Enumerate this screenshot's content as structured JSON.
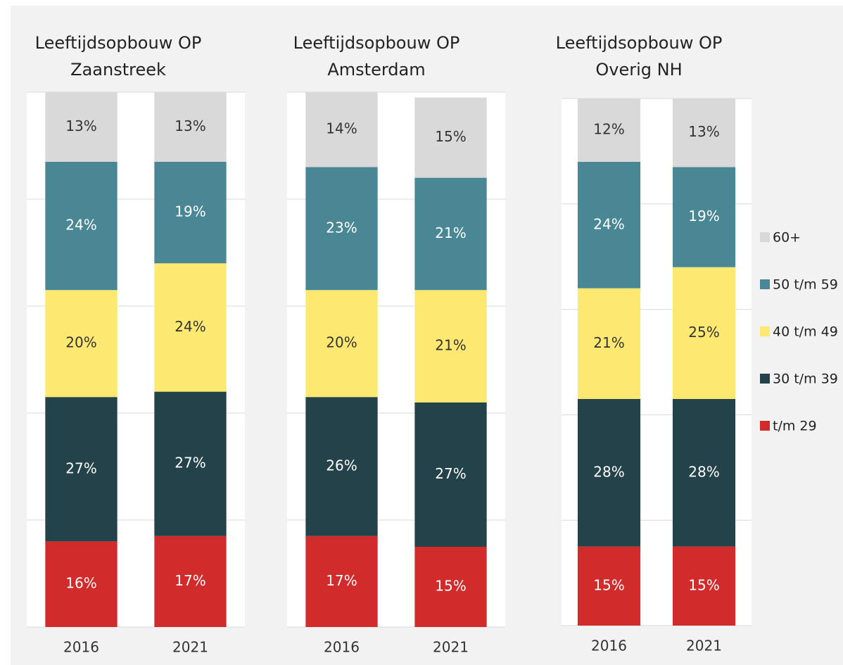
{
  "chart_data": [
    {
      "type": "bar",
      "stacked": true,
      "title": [
        "Leeftijdsopbouw OP",
        "Zaanstreek"
      ],
      "categories": [
        "2016",
        "2021"
      ],
      "series": [
        {
          "color": "#d22b2b",
          "values": [
            16,
            17
          ],
          "value_labels": [
            "16%",
            "17%"
          ]
        },
        {
          "color": "#244249",
          "values": [
            27,
            27
          ],
          "value_labels": [
            "27%",
            "27%"
          ]
        },
        {
          "color": "#fde971",
          "values": [
            20,
            24
          ],
          "value_labels": [
            "20%",
            "24%"
          ]
        },
        {
          "color": "#4a8795",
          "values": [
            24,
            19
          ],
          "value_labels": [
            "24%",
            "19%"
          ]
        },
        {
          "color": "#d9d9d9",
          "values": [
            13,
            13
          ],
          "value_labels": [
            "13%",
            "13%"
          ]
        }
      ],
      "ylim": [
        0,
        100
      ],
      "yticks": [
        0,
        20,
        40,
        60,
        80,
        100
      ],
      "grid": true
    },
    {
      "type": "bar",
      "stacked": true,
      "title": [
        "Leeftijdsopbouw OP",
        "Amsterdam"
      ],
      "categories": [
        "2016",
        "2021"
      ],
      "series": [
        {
          "color": "#d22b2b",
          "values": [
            17,
            15
          ],
          "value_labels": [
            "17%",
            "15%"
          ]
        },
        {
          "color": "#244249",
          "values": [
            26,
            27
          ],
          "value_labels": [
            "26%",
            "27%"
          ]
        },
        {
          "color": "#fde971",
          "values": [
            20,
            21
          ],
          "value_labels": [
            "20%",
            "21%"
          ]
        },
        {
          "color": "#4a8795",
          "values": [
            23,
            21
          ],
          "value_labels": [
            "23%",
            "21%"
          ]
        },
        {
          "color": "#d9d9d9",
          "values": [
            14,
            15
          ],
          "value_labels": [
            "14%",
            "15%"
          ]
        }
      ],
      "ylim": [
        0,
        100
      ],
      "yticks": [
        0,
        20,
        40,
        60,
        80,
        100
      ],
      "grid": true
    },
    {
      "type": "bar",
      "stacked": true,
      "title": [
        "Leeftijdsopbouw OP",
        "Overig NH"
      ],
      "categories": [
        "2016",
        "2021"
      ],
      "series": [
        {
          "name": "t/m 29",
          "color": "#d22b2b",
          "values": [
            15,
            15
          ],
          "value_labels": [
            "15%",
            "15%"
          ]
        },
        {
          "name": "30 t/m 39",
          "color": "#244249",
          "values": [
            28,
            28
          ],
          "value_labels": [
            "28%",
            "28%"
          ]
        },
        {
          "name": "40 t/m 49",
          "color": "#fde971",
          "values": [
            21,
            25
          ],
          "value_labels": [
            "21%",
            "25%"
          ]
        },
        {
          "name": "50 t/m 59",
          "color": "#4a8795",
          "values": [
            24,
            19
          ],
          "value_labels": [
            "24%",
            "19%"
          ]
        },
        {
          "name": "60+",
          "color": "#d9d9d9",
          "values": [
            12,
            13
          ],
          "value_labels": [
            "12%",
            "13%"
          ]
        }
      ],
      "ylim": [
        0,
        100
      ],
      "yticks": [
        0,
        20,
        40,
        60,
        80,
        100
      ],
      "grid": true,
      "legend": "right"
    }
  ]
}
